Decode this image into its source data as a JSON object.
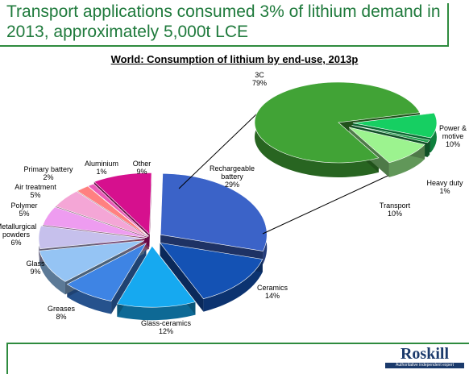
{
  "slide_title": "Transport applications consumed 3% of lithium demand in 2013, approximately 5,000t LCE",
  "brand": {
    "name": "Roskill",
    "tagline": "Authoritative independent expert"
  },
  "colors": {
    "accent": "#2e8b3e",
    "brand_navy": "#1b3a6b"
  },
  "chart_data": [
    {
      "type": "pie",
      "title": "World: Consumption of lithium by end-use, 2013p",
      "unit": "%",
      "slices": [
        {
          "label": "Rechargeable battery",
          "value": 29,
          "color": "#3b63c8"
        },
        {
          "label": "Ceramics",
          "value": 14,
          "color": "#1452b4"
        },
        {
          "label": "Glass-ceramics",
          "value": 12,
          "color": "#16a9f0"
        },
        {
          "label": "Greases",
          "value": 8,
          "color": "#3e84e4"
        },
        {
          "label": "Glass",
          "value": 9,
          "color": "#95c4f4"
        },
        {
          "label": "Metallurgical powders",
          "value": 6,
          "color": "#c6c0ec"
        },
        {
          "label": "Polymer",
          "value": 5,
          "color": "#ee9cf0"
        },
        {
          "label": "Air treatment",
          "value": 5,
          "color": "#f4a6d6"
        },
        {
          "label": "Primary battery",
          "value": 2,
          "color": "#ff8080"
        },
        {
          "label": "Aluminium",
          "value": 1,
          "color": "#ea5bb8"
        },
        {
          "label": "Other",
          "value": 9,
          "color": "#d6108e"
        }
      ]
    },
    {
      "type": "pie",
      "title": "",
      "unit": "%",
      "breakout_of": "Rechargeable battery",
      "slices": [
        {
          "label": "3C",
          "value": 79,
          "color": "#41a336"
        },
        {
          "label": "Power & motive",
          "value": 10,
          "color": "#16cf62"
        },
        {
          "label": "Heavy duty",
          "value": 1,
          "color": "#20a04c"
        },
        {
          "label": "Transport",
          "value": 10,
          "color": "#9cf38f"
        }
      ]
    }
  ]
}
